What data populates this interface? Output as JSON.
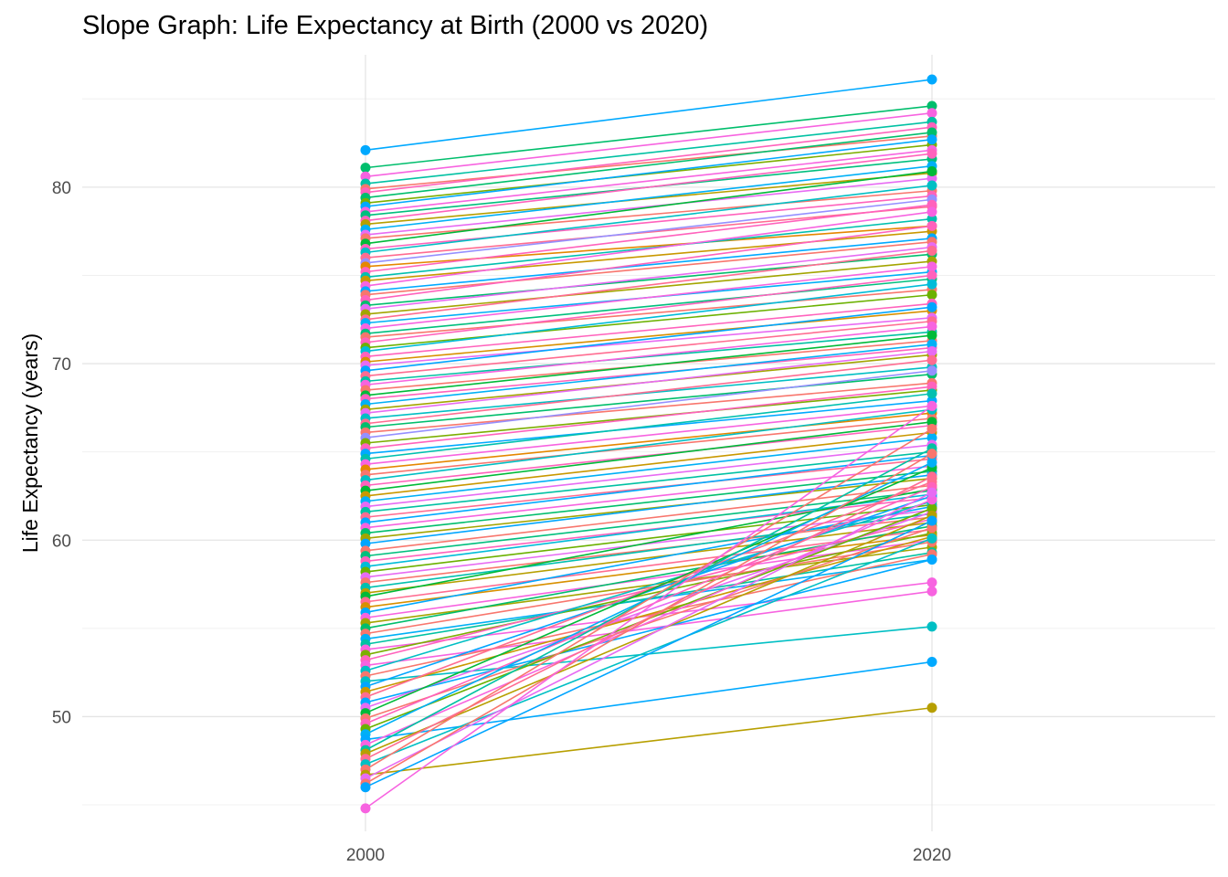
{
  "chart_data": {
    "type": "line",
    "title": "Slope Graph: Life Expectancy at Birth (2000 vs 2020)",
    "xlabel": "",
    "ylabel": "Life Expectancy (years)",
    "categories": [
      "2000",
      "2020"
    ],
    "xlim": [
      1990,
      2030
    ],
    "ylim": [
      43.5,
      87.5
    ],
    "y_ticks": [
      50,
      60,
      70,
      80
    ],
    "grid": true,
    "legend": "none",
    "palette": [
      "#F8766D",
      "#E7851E",
      "#D09400",
      "#B2A100",
      "#89AC00",
      "#45B500",
      "#00BC51",
      "#00C087",
      "#00C0B2",
      "#00BCD6",
      "#00B3F2",
      "#29A3FF",
      "#9C8DFF",
      "#D277FF",
      "#F166E8",
      "#FF61C7",
      "#FF689E",
      "#F8766D"
    ],
    "series": [
      {
        "values": [
          82.1,
          86.1
        ],
        "color": "#00A9FF"
      },
      {
        "values": [
          81.1,
          84.6
        ],
        "color": "#00BE6C"
      },
      {
        "values": [
          80.6,
          84.2
        ],
        "color": "#F763E0"
      },
      {
        "values": [
          80.2,
          83.7
        ],
        "color": "#00C1A3"
      },
      {
        "values": [
          79.9,
          82.9
        ],
        "color": "#F8766D"
      },
      {
        "values": [
          79.7,
          83.4
        ],
        "color": "#FF62BC"
      },
      {
        "values": [
          79.4,
          83.1
        ],
        "color": "#00BE6C"
      },
      {
        "values": [
          79.1,
          82.4
        ],
        "color": "#7CAE00"
      },
      {
        "values": [
          78.9,
          82.7
        ],
        "color": "#00A9FF"
      },
      {
        "values": [
          78.6,
          82.1
        ],
        "color": "#F763E0"
      },
      {
        "values": [
          78.4,
          81.6
        ],
        "color": "#00BF7D"
      },
      {
        "values": [
          78.1,
          81.9
        ],
        "color": "#FF62BC"
      },
      {
        "values": [
          77.9,
          80.8
        ],
        "color": "#B79F00"
      },
      {
        "values": [
          77.6,
          81.2
        ],
        "color": "#00B0F6"
      },
      {
        "values": [
          77.3,
          80.5
        ],
        "color": "#E76BF3"
      },
      {
        "values": [
          77.1,
          79.8
        ],
        "color": "#F8766D"
      },
      {
        "values": [
          76.8,
          80.9
        ],
        "color": "#00BA38"
      },
      {
        "values": [
          76.5,
          79.5
        ],
        "color": "#FF62BC"
      },
      {
        "values": [
          76.3,
          80.1
        ],
        "color": "#00BFC4"
      },
      {
        "values": [
          76.0,
          78.9
        ],
        "color": "#FF6C91"
      },
      {
        "values": [
          75.7,
          79.3
        ],
        "color": "#9590FF"
      },
      {
        "values": [
          75.5,
          77.8
        ],
        "color": "#E58700"
      },
      {
        "values": [
          75.2,
          79.0
        ],
        "color": "#FF62BC"
      },
      {
        "values": [
          74.9,
          78.2
        ],
        "color": "#00C0AF"
      },
      {
        "values": [
          74.7,
          77.5
        ],
        "color": "#C99800"
      },
      {
        "values": [
          74.4,
          78.6
        ],
        "color": "#F763E0"
      },
      {
        "values": [
          74.1,
          77.1
        ],
        "color": "#00A9FF"
      },
      {
        "values": [
          73.9,
          76.9
        ],
        "color": "#F8766D"
      },
      {
        "values": [
          73.6,
          77.8
        ],
        "color": "#FF62BC"
      },
      {
        "values": [
          73.3,
          76.2
        ],
        "color": "#00BE6C"
      },
      {
        "values": [
          73.1,
          76.6
        ],
        "color": "#E76BF3"
      },
      {
        "values": [
          72.8,
          75.8
        ],
        "color": "#A3A500"
      },
      {
        "values": [
          72.5,
          76.4
        ],
        "color": "#FF6C91"
      },
      {
        "values": [
          72.3,
          75.2
        ],
        "color": "#00B0F6"
      },
      {
        "values": [
          72.0,
          75.5
        ],
        "color": "#F763E0"
      },
      {
        "values": [
          71.7,
          74.8
        ],
        "color": "#00BF7D"
      },
      {
        "values": [
          71.5,
          74.2
        ],
        "color": "#F8766D"
      },
      {
        "values": [
          71.2,
          75.0
        ],
        "color": "#FF62BC"
      },
      {
        "values": [
          70.9,
          73.9
        ],
        "color": "#6BB100"
      },
      {
        "values": [
          70.7,
          74.5
        ],
        "color": "#00BCD8"
      },
      {
        "values": [
          70.4,
          73.4
        ],
        "color": "#FF62BC"
      },
      {
        "values": [
          70.1,
          73.0
        ],
        "color": "#D89000"
      },
      {
        "values": [
          69.9,
          72.6
        ],
        "color": "#E76BF3"
      },
      {
        "values": [
          69.6,
          73.2
        ],
        "color": "#00A5FF"
      },
      {
        "values": [
          69.3,
          72.4
        ],
        "color": "#FF6C91"
      },
      {
        "values": [
          69.0,
          71.8
        ],
        "color": "#00C1A3"
      },
      {
        "values": [
          68.8,
          72.1
        ],
        "color": "#F763E0"
      },
      {
        "values": [
          68.5,
          71.3
        ],
        "color": "#F8766D"
      },
      {
        "values": [
          68.2,
          71.6
        ],
        "color": "#00BA38"
      },
      {
        "values": [
          68.0,
          70.9
        ],
        "color": "#FF62BC"
      },
      {
        "values": [
          67.7,
          71.1
        ],
        "color": "#00B0F6"
      },
      {
        "values": [
          67.4,
          70.5
        ],
        "color": "#A3A500"
      },
      {
        "values": [
          67.2,
          70.7
        ],
        "color": "#E76BF3"
      },
      {
        "values": [
          66.9,
          69.8
        ],
        "color": "#00BFC4"
      },
      {
        "values": [
          66.6,
          70.2
        ],
        "color": "#FF6C91"
      },
      {
        "values": [
          66.4,
          69.4
        ],
        "color": "#00BE6C"
      },
      {
        "values": [
          66.1,
          68.9
        ],
        "color": "#F8766D"
      },
      {
        "values": [
          65.8,
          69.6
        ],
        "color": "#9590FF"
      },
      {
        "values": [
          65.5,
          68.5
        ],
        "color": "#7CAE00"
      },
      {
        "values": [
          65.2,
          68.7
        ],
        "color": "#FF62BC"
      },
      {
        "values": [
          64.9,
          67.9
        ],
        "color": "#00A9FF"
      },
      {
        "values": [
          64.6,
          68.3
        ],
        "color": "#00C0AF"
      },
      {
        "values": [
          64.3,
          67.6
        ],
        "color": "#F763E0"
      },
      {
        "values": [
          64.0,
          67.2
        ],
        "color": "#E58700"
      },
      {
        "values": [
          63.7,
          66.9
        ],
        "color": "#F8766D"
      },
      {
        "values": [
          63.4,
          67.4
        ],
        "color": "#00BFC4"
      },
      {
        "values": [
          63.1,
          66.5
        ],
        "color": "#FF62BC"
      },
      {
        "values": [
          62.8,
          66.7
        ],
        "color": "#00BA38"
      },
      {
        "values": [
          62.5,
          66.1
        ],
        "color": "#C99800"
      },
      {
        "values": [
          62.2,
          65.8
        ],
        "color": "#00B0F6"
      },
      {
        "values": [
          61.9,
          65.4
        ],
        "color": "#E76BF3"
      },
      {
        "values": [
          61.6,
          65.0
        ],
        "color": "#00C1A3"
      },
      {
        "values": [
          61.3,
          64.6
        ],
        "color": "#FF6C91"
      },
      {
        "values": [
          61.0,
          64.8
        ],
        "color": "#00A9FF"
      },
      {
        "values": [
          60.7,
          64.2
        ],
        "color": "#F763E0"
      },
      {
        "values": [
          60.4,
          63.9
        ],
        "color": "#00BE6C"
      },
      {
        "values": [
          60.1,
          63.5
        ],
        "color": "#A3A500"
      },
      {
        "values": [
          59.8,
          63.7
        ],
        "color": "#00A5FF"
      },
      {
        "values": [
          59.4,
          63.1
        ],
        "color": "#F8766D"
      },
      {
        "values": [
          59.1,
          62.8
        ],
        "color": "#00BF7D"
      },
      {
        "values": [
          58.8,
          62.4
        ],
        "color": "#FF62BC"
      },
      {
        "values": [
          58.5,
          62.6
        ],
        "color": "#00BCD8"
      },
      {
        "values": [
          58.2,
          62.0
        ],
        "color": "#6BB100"
      },
      {
        "values": [
          57.9,
          61.7
        ],
        "color": "#E76BF3"
      },
      {
        "values": [
          57.6,
          61.3
        ],
        "color": "#F8766D"
      },
      {
        "values": [
          57.3,
          61.5
        ],
        "color": "#00C0AF"
      },
      {
        "values": [
          57.0,
          61.0
        ],
        "color": "#B79F00"
      },
      {
        "values": [
          56.8,
          62.9
        ],
        "color": "#00BA38"
      },
      {
        "values": [
          56.5,
          60.6
        ],
        "color": "#FF6C91"
      },
      {
        "values": [
          56.2,
          60.3
        ],
        "color": "#D89000"
      },
      {
        "values": [
          55.9,
          61.9
        ],
        "color": "#00A9FF"
      },
      {
        "values": [
          55.6,
          60.0
        ],
        "color": "#F763E0"
      },
      {
        "values": [
          55.3,
          59.6
        ],
        "color": "#A3A500"
      },
      {
        "values": [
          55.0,
          60.8
        ],
        "color": "#00BE6C"
      },
      {
        "values": [
          54.7,
          59.9
        ],
        "color": "#F8766D"
      },
      {
        "values": [
          54.4,
          58.9
        ],
        "color": "#00B0F6"
      },
      {
        "values": [
          54.1,
          59.3
        ],
        "color": "#00C1A3"
      },
      {
        "values": [
          53.8,
          57.6
        ],
        "color": "#F763E0"
      },
      {
        "values": [
          53.5,
          60.4
        ],
        "color": "#7CAE00"
      },
      {
        "values": [
          53.2,
          61.2
        ],
        "color": "#FF62BC"
      },
      {
        "values": [
          52.9,
          57.1
        ],
        "color": "#F763E0"
      },
      {
        "values": [
          52.6,
          62.2
        ],
        "color": "#00BFC4"
      },
      {
        "values": [
          52.3,
          59.2
        ],
        "color": "#F8766D"
      },
      {
        "values": [
          52.0,
          55.1
        ],
        "color": "#00BFC4"
      },
      {
        "values": [
          51.7,
          62.5
        ],
        "color": "#00A5FF"
      },
      {
        "values": [
          51.4,
          60.2
        ],
        "color": "#C99800"
      },
      {
        "values": [
          51.1,
          63.3
        ],
        "color": "#FF6C91"
      },
      {
        "values": [
          50.8,
          58.9
        ],
        "color": "#00A9FF"
      },
      {
        "values": [
          50.5,
          61.6
        ],
        "color": "#E76BF3"
      },
      {
        "values": [
          50.2,
          64.1
        ],
        "color": "#00BA38"
      },
      {
        "values": [
          49.9,
          60.7
        ],
        "color": "#F8766D"
      },
      {
        "values": [
          49.6,
          63.0
        ],
        "color": "#FF62BC"
      },
      {
        "values": [
          49.3,
          61.8
        ],
        "color": "#6BB100"
      },
      {
        "values": [
          49.0,
          64.4
        ],
        "color": "#00B0F6"
      },
      {
        "values": [
          48.7,
          53.1
        ],
        "color": "#00A9FF"
      },
      {
        "values": [
          48.4,
          62.3
        ],
        "color": "#F763E0"
      },
      {
        "values": [
          48.1,
          65.2
        ],
        "color": "#00C1A3"
      },
      {
        "values": [
          47.9,
          61.4
        ],
        "color": "#B79F00"
      },
      {
        "values": [
          47.6,
          63.6
        ],
        "color": "#FF6C91"
      },
      {
        "values": [
          47.3,
          60.1
        ],
        "color": "#00BFC4"
      },
      {
        "values": [
          47.0,
          66.3
        ],
        "color": "#F8766D"
      },
      {
        "values": [
          46.7,
          50.5
        ],
        "color": "#B79F00"
      },
      {
        "values": [
          46.5,
          62.7
        ],
        "color": "#E76BF3"
      },
      {
        "values": [
          46.2,
          64.9
        ],
        "color": "#F8766D"
      },
      {
        "values": [
          46.0,
          61.1
        ],
        "color": "#00A5FF"
      },
      {
        "values": [
          44.8,
          67.6
        ],
        "color": "#F763E0"
      }
    ]
  }
}
